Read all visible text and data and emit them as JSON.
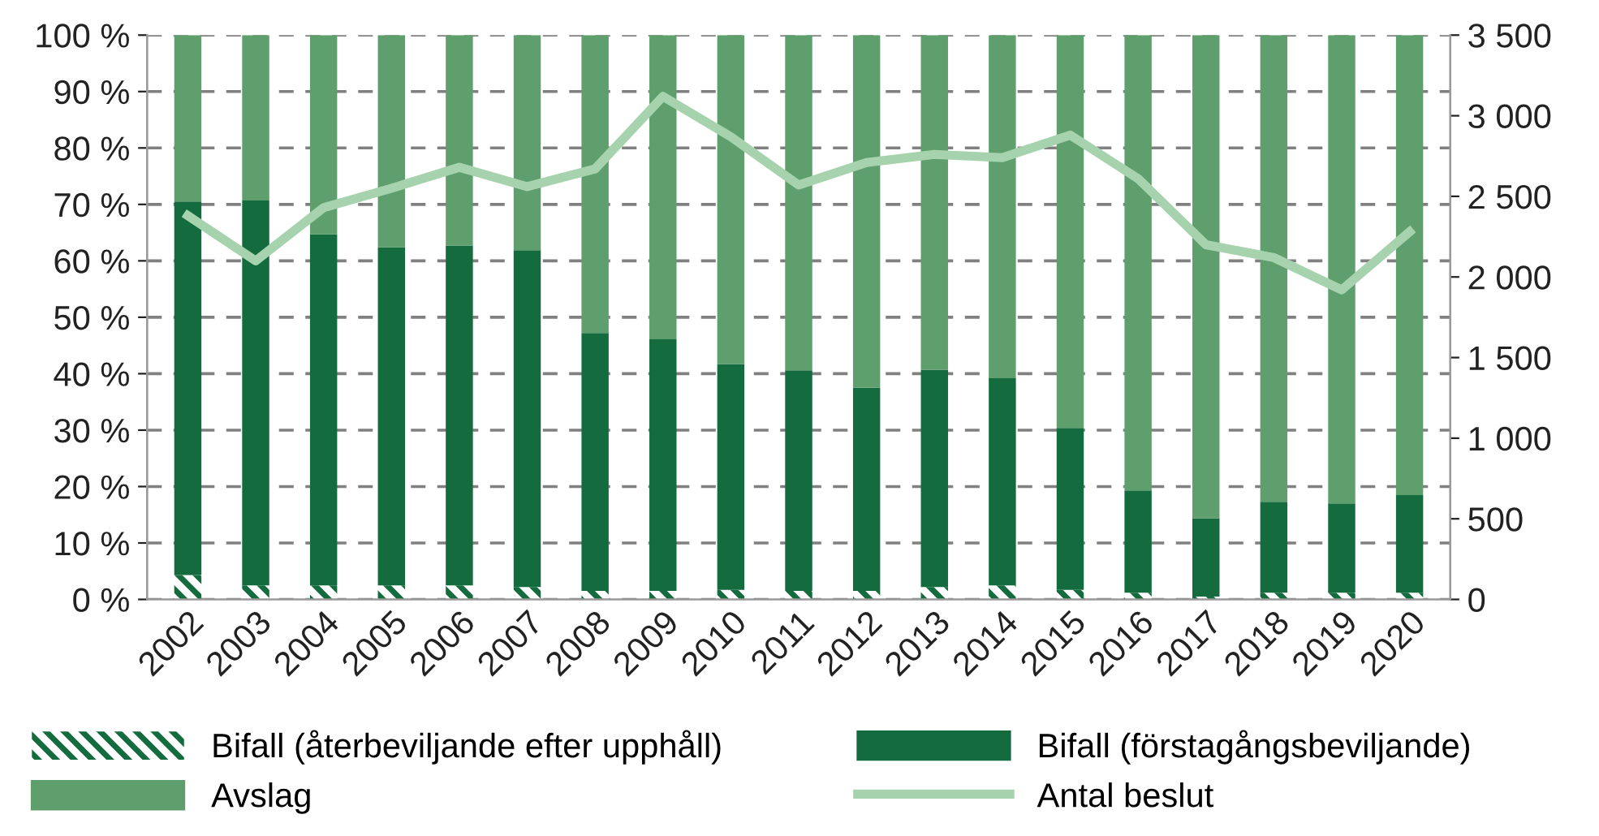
{
  "chart_data": {
    "type": "bar",
    "stacked": true,
    "categories": [
      "2002",
      "2003",
      "2004",
      "2005",
      "2006",
      "2007",
      "2008",
      "2009",
      "2010",
      "2011",
      "2012",
      "2013",
      "2014",
      "2015",
      "2016",
      "2017",
      "2018",
      "2019",
      "2020"
    ],
    "series": [
      {
        "name": "Bifall (återbeviljande efter upphåll)",
        "color": "#136b3e",
        "values": [
          4.3,
          2.5,
          2.5,
          2.5,
          2.5,
          2.2,
          1.5,
          1.5,
          1.7,
          1.5,
          1.5,
          2.2,
          2.5,
          1.7,
          1.2,
          0.5,
          1.2,
          1.2,
          1.2
        ]
      },
      {
        "name": "Bifall (förstagångsbeviljande)",
        "color": "#136b3e",
        "values": [
          66.2,
          68.2,
          62.2,
          59.9,
          60.2,
          59.7,
          45.7,
          44.6,
          40.0,
          39.1,
          36.0,
          38.5,
          36.7,
          28.7,
          18.1,
          13.9,
          16.1,
          15.8,
          17.3
        ]
      },
      {
        "name": "Avslag",
        "color": "#5f9f6d",
        "values": [
          29.5,
          29.3,
          35.3,
          37.6,
          37.3,
          38.1,
          52.8,
          53.9,
          58.3,
          59.4,
          62.5,
          59.3,
          60.8,
          69.6,
          80.7,
          85.6,
          82.7,
          83.0,
          81.5
        ]
      },
      {
        "name": "Antal beslut",
        "type": "line",
        "axis": "y2",
        "color": "#a6d3ae",
        "values": [
          2380,
          2100,
          2430,
          2550,
          2680,
          2560,
          2670,
          3120,
          2870,
          2570,
          2710,
          2760,
          2740,
          2880,
          2610,
          2200,
          2120,
          1920,
          2280
        ]
      }
    ],
    "ylim": [
      0,
      100
    ],
    "yticks": [
      {
        "value": 0,
        "label": "0 %"
      },
      {
        "value": 10,
        "label": "10 %"
      },
      {
        "value": 20,
        "label": "20 %"
      },
      {
        "value": 30,
        "label": "30 %"
      },
      {
        "value": 40,
        "label": "40 %"
      },
      {
        "value": 50,
        "label": "50 %"
      },
      {
        "value": 60,
        "label": "60 %"
      },
      {
        "value": 70,
        "label": "70 %"
      },
      {
        "value": 80,
        "label": "80 %"
      },
      {
        "value": 90,
        "label": "90 %"
      },
      {
        "value": 100,
        "label": "100 %"
      }
    ],
    "y2lim": [
      0,
      3500
    ],
    "y2ticks": [
      0,
      500,
      {
        "value": 1000,
        "label": "1 000"
      },
      {
        "value": 1500,
        "label": "1 500"
      },
      {
        "value": 2000,
        "label": "2 000"
      },
      {
        "value": 2500,
        "label": "2 500"
      },
      {
        "value": 3000,
        "label": "3 000"
      },
      {
        "value": 3500,
        "label": "3 500"
      }
    ],
    "grid": "y",
    "legend": "bottom",
    "line_style": "solid",
    "marker": "none"
  }
}
